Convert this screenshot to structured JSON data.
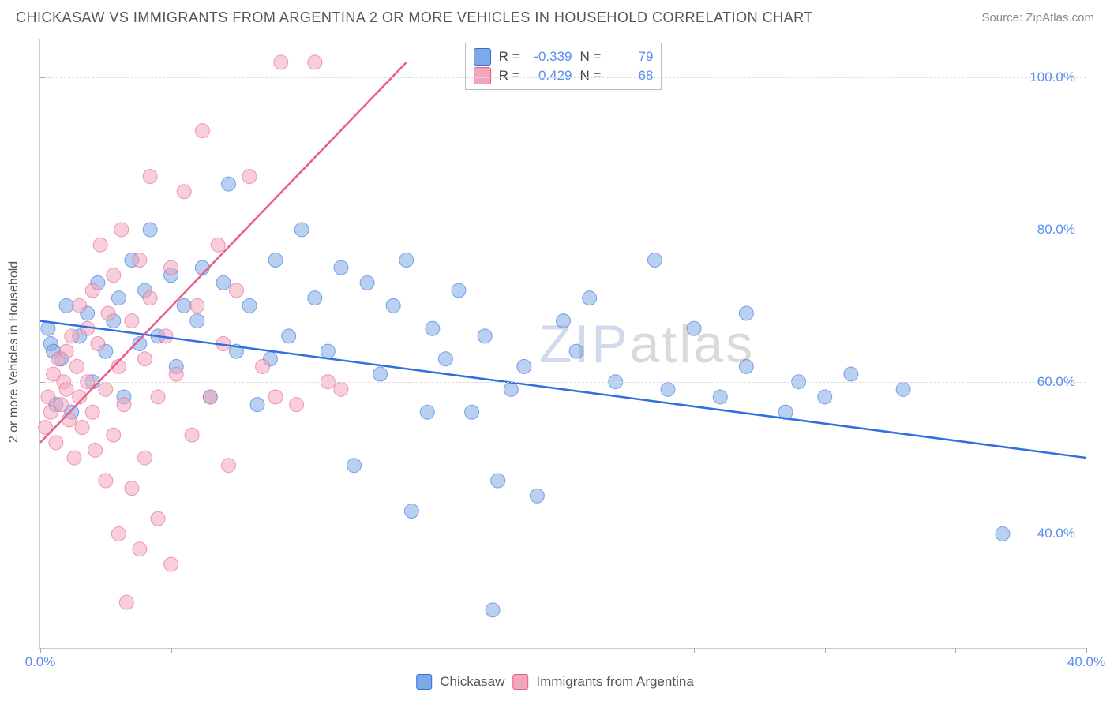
{
  "header": {
    "title": "CHICKASAW VS IMMIGRANTS FROM ARGENTINA 2 OR MORE VEHICLES IN HOUSEHOLD CORRELATION CHART",
    "source": "Source: ZipAtlas.com"
  },
  "chart": {
    "type": "scatter",
    "y_axis_label": "2 or more Vehicles in Household",
    "xlim": [
      0,
      40
    ],
    "ylim": [
      25,
      105
    ],
    "x_ticks": [
      0,
      5,
      10,
      15,
      20,
      25,
      30,
      35,
      40
    ],
    "x_tick_labels": {
      "0": "0.0%",
      "40": "40.0%"
    },
    "y_ticks": [
      40,
      60,
      80,
      100
    ],
    "y_tick_labels": {
      "40": "40.0%",
      "60": "60.0%",
      "80": "80.0%",
      "100": "100.0%"
    },
    "grid_color": "#dddddd",
    "axis_color": "#cccccc",
    "tick_color": "#aaaaaa",
    "background_color": "#ffffff",
    "marker_radius": 9,
    "marker_opacity": 0.55,
    "line_width": 2.5,
    "label_color": "#5b8def",
    "series": [
      {
        "name": "Chickasaw",
        "color": "#7fa9e6",
        "line_color": "#2f6fe0",
        "R": "-0.339",
        "N": "79",
        "trend": {
          "x1": 0,
          "y1": 68,
          "x2": 40,
          "y2": 50
        },
        "points": [
          [
            0.3,
            67
          ],
          [
            0.4,
            65
          ],
          [
            0.5,
            64
          ],
          [
            0.6,
            57
          ],
          [
            0.8,
            63
          ],
          [
            1.0,
            70
          ],
          [
            1.2,
            56
          ],
          [
            1.5,
            66
          ],
          [
            1.8,
            69
          ],
          [
            2.0,
            60
          ],
          [
            2.2,
            73
          ],
          [
            2.5,
            64
          ],
          [
            2.8,
            68
          ],
          [
            3.0,
            71
          ],
          [
            3.2,
            58
          ],
          [
            3.5,
            76
          ],
          [
            3.8,
            65
          ],
          [
            4.0,
            72
          ],
          [
            4.2,
            80
          ],
          [
            4.5,
            66
          ],
          [
            5.0,
            74
          ],
          [
            5.2,
            62
          ],
          [
            5.5,
            70
          ],
          [
            6.0,
            68
          ],
          [
            6.2,
            75
          ],
          [
            6.5,
            58
          ],
          [
            7.0,
            73
          ],
          [
            7.2,
            86
          ],
          [
            7.5,
            64
          ],
          [
            8.0,
            70
          ],
          [
            8.3,
            57
          ],
          [
            8.8,
            63
          ],
          [
            9.0,
            76
          ],
          [
            9.5,
            66
          ],
          [
            10.0,
            80
          ],
          [
            10.5,
            71
          ],
          [
            11.0,
            64
          ],
          [
            11.5,
            75
          ],
          [
            12.0,
            49
          ],
          [
            12.5,
            73
          ],
          [
            13.0,
            61
          ],
          [
            13.5,
            70
          ],
          [
            14.0,
            76
          ],
          [
            14.2,
            43
          ],
          [
            14.8,
            56
          ],
          [
            15.0,
            67
          ],
          [
            15.5,
            63
          ],
          [
            16.0,
            72
          ],
          [
            16.5,
            56
          ],
          [
            17.0,
            66
          ],
          [
            17.3,
            30
          ],
          [
            17.5,
            47
          ],
          [
            18.0,
            59
          ],
          [
            18.5,
            62
          ],
          [
            19.0,
            45
          ],
          [
            20.0,
            68
          ],
          [
            20.5,
            64
          ],
          [
            21.0,
            71
          ],
          [
            22.0,
            60
          ],
          [
            23.5,
            76
          ],
          [
            24.0,
            59
          ],
          [
            25.0,
            67
          ],
          [
            26.0,
            58
          ],
          [
            27.0,
            62
          ],
          [
            27.0,
            69
          ],
          [
            28.5,
            56
          ],
          [
            29.0,
            60
          ],
          [
            30.0,
            58
          ],
          [
            31.0,
            61
          ],
          [
            33.0,
            59
          ],
          [
            36.8,
            40
          ]
        ]
      },
      {
        "name": "Immigrants from Argentina",
        "color": "#f2a6bb",
        "line_color": "#e85d8a",
        "R": "0.429",
        "N": "68",
        "trend": {
          "x1": 0,
          "y1": 52,
          "x2": 14,
          "y2": 102
        },
        "points": [
          [
            0.2,
            54
          ],
          [
            0.3,
            58
          ],
          [
            0.4,
            56
          ],
          [
            0.5,
            61
          ],
          [
            0.6,
            52
          ],
          [
            0.7,
            63
          ],
          [
            0.8,
            57
          ],
          [
            0.9,
            60
          ],
          [
            1.0,
            59
          ],
          [
            1.0,
            64
          ],
          [
            1.1,
            55
          ],
          [
            1.2,
            66
          ],
          [
            1.3,
            50
          ],
          [
            1.4,
            62
          ],
          [
            1.5,
            58
          ],
          [
            1.5,
            70
          ],
          [
            1.6,
            54
          ],
          [
            1.8,
            67
          ],
          [
            1.8,
            60
          ],
          [
            2.0,
            56
          ],
          [
            2.0,
            72
          ],
          [
            2.1,
            51
          ],
          [
            2.2,
            65
          ],
          [
            2.3,
            78
          ],
          [
            2.5,
            59
          ],
          [
            2.5,
            47
          ],
          [
            2.6,
            69
          ],
          [
            2.8,
            53
          ],
          [
            2.8,
            74
          ],
          [
            3.0,
            62
          ],
          [
            3.0,
            40
          ],
          [
            3.1,
            80
          ],
          [
            3.2,
            57
          ],
          [
            3.3,
            31
          ],
          [
            3.5,
            68
          ],
          [
            3.5,
            46
          ],
          [
            3.8,
            76
          ],
          [
            3.8,
            38
          ],
          [
            4.0,
            63
          ],
          [
            4.0,
            50
          ],
          [
            4.2,
            71
          ],
          [
            4.2,
            87
          ],
          [
            4.5,
            58
          ],
          [
            4.5,
            42
          ],
          [
            4.8,
            66
          ],
          [
            5.0,
            75
          ],
          [
            5.0,
            36
          ],
          [
            5.2,
            61
          ],
          [
            5.5,
            85
          ],
          [
            5.8,
            53
          ],
          [
            6.0,
            70
          ],
          [
            6.2,
            93
          ],
          [
            6.5,
            58
          ],
          [
            6.8,
            78
          ],
          [
            7.0,
            65
          ],
          [
            7.2,
            49
          ],
          [
            7.5,
            72
          ],
          [
            8.0,
            87
          ],
          [
            8.5,
            62
          ],
          [
            9.0,
            58
          ],
          [
            9.2,
            102
          ],
          [
            9.8,
            57
          ],
          [
            10.5,
            102
          ],
          [
            11.0,
            60
          ],
          [
            11.5,
            59
          ]
        ]
      }
    ]
  },
  "legend_top": {
    "r_label": "R =",
    "n_label": "N ="
  },
  "legend_bottom": {
    "items": [
      "Chickasaw",
      "Immigrants from Argentina"
    ]
  },
  "watermark": {
    "zip": "ZIP",
    "atlas": "atlas"
  }
}
